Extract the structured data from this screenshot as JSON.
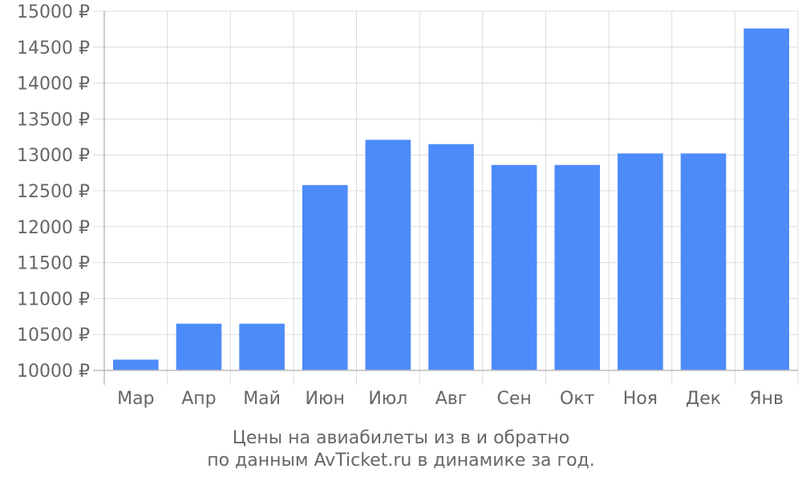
{
  "caption": {
    "line1": "Цены на авиабилеты из  в  и обратно",
    "line2": "по данным AvTicket.ru в динамике за год."
  },
  "chart_data": {
    "type": "bar",
    "categories": [
      "Мар",
      "Апр",
      "Май",
      "Июн",
      "Июл",
      "Авг",
      "Сен",
      "Окт",
      "Ноя",
      "Дек",
      "Янв"
    ],
    "values": [
      10150,
      10650,
      10650,
      12580,
      13210,
      13150,
      12860,
      12860,
      13020,
      13020,
      14760
    ],
    "ylim": [
      10000,
      15000
    ],
    "yticks": [
      10000,
      10500,
      11000,
      11500,
      12000,
      12500,
      13000,
      13500,
      14000,
      14500,
      15000
    ],
    "ytick_suffix": " ₽",
    "title": "",
    "xlabel": "",
    "ylabel": "",
    "grid": true,
    "bar_color": "#4d8bfa",
    "grid_color": "#dcdcdc",
    "axis_color": "#bbbbbb",
    "text_color": "#666666"
  }
}
